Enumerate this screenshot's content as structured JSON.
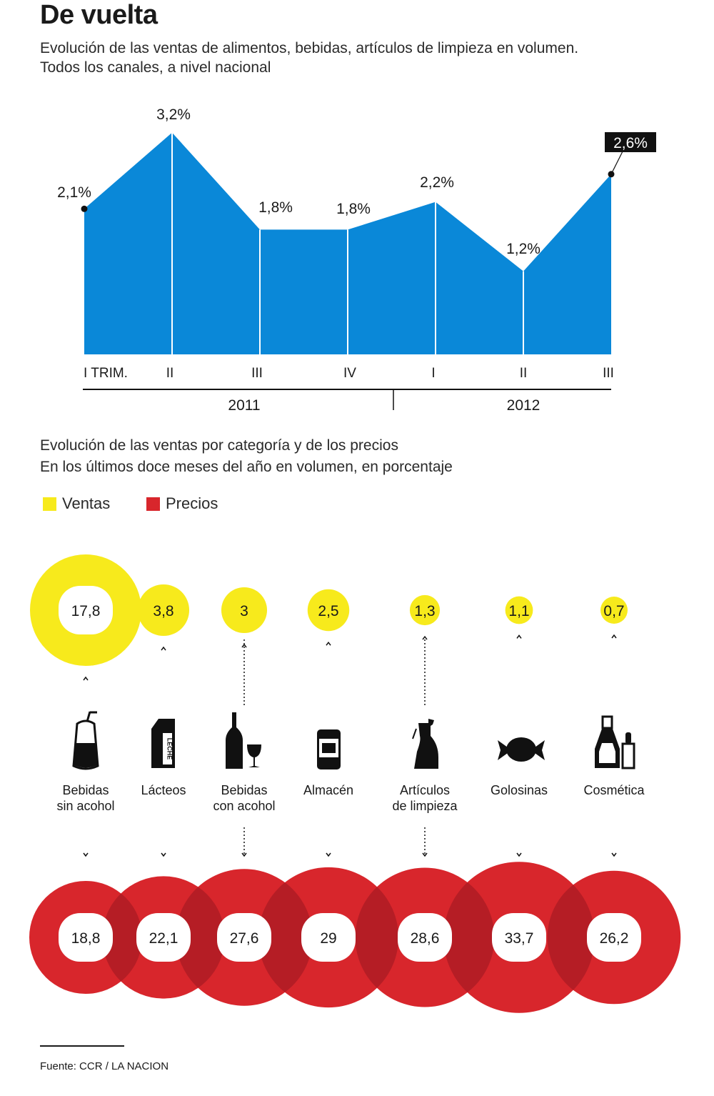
{
  "header": {
    "title": "De vuelta",
    "subtitle_line1": "Evolución de las ventas de alimentos, bebidas, artículos de limpieza en volumen.",
    "subtitle_line2": "Todos los canales, a nivel nacional"
  },
  "section2": {
    "title_line1": "Evolución de las ventas por categoría y de los precios",
    "title_line2": "En los últimos doce meses del año en volumen, en porcentaje"
  },
  "legend": {
    "ventas": "Ventas",
    "precios": "Precios"
  },
  "colors": {
    "area": "#0a88d8",
    "ventas": "#f7ea1c",
    "precios": "#d8262c"
  },
  "source": "Fuente: CCR / LA NACION",
  "chart_data": [
    {
      "type": "area",
      "categories": [
        "I TRIM.",
        "II",
        "III",
        "IV",
        "I",
        "II",
        "III"
      ],
      "values": [
        2.1,
        3.2,
        1.8,
        1.8,
        2.2,
        1.2,
        2.6
      ],
      "value_labels": [
        "2,1%",
        "3,2%",
        "1,8%",
        "1,8%",
        "2,2%",
        "1,2%",
        "2,6%"
      ],
      "year_groups": [
        {
          "label": "2011",
          "categories": 4
        },
        {
          "label": "2012",
          "categories": 3
        }
      ],
      "highlighted_label": "2,6%",
      "grid": false
    },
    {
      "type": "bubble",
      "categories": [
        {
          "icon": "soft-drink-bottle-icon",
          "label_line1": "Bebidas",
          "label_line2": "sin acohol"
        },
        {
          "icon": "milk-carton-icon",
          "label_line1": "Lácteos",
          "label_line2": ""
        },
        {
          "icon": "wine-bottle-glass-icon",
          "label_line1": "Bebidas",
          "label_line2": "con acohol"
        },
        {
          "icon": "food-can-icon",
          "label_line1": "Almacén",
          "label_line2": ""
        },
        {
          "icon": "spray-bottle-icon",
          "label_line1": "Artículos",
          "label_line2": "de limpieza"
        },
        {
          "icon": "wrapped-candy-icon",
          "label_line1": "Golosinas",
          "label_line2": ""
        },
        {
          "icon": "cosmetics-icon",
          "label_line1": "Cosmética",
          "label_line2": ""
        }
      ],
      "icon_text": {
        "milk-carton": "LECHE"
      },
      "series": [
        {
          "name": "Ventas",
          "values": [
            17.8,
            3.8,
            3,
            2.5,
            1.3,
            1.1,
            0.7
          ],
          "labels": [
            "17,8",
            "3,8",
            "3",
            "2,5",
            "1,3",
            "1,1",
            "0,7"
          ]
        },
        {
          "name": "Precios",
          "values": [
            18.8,
            22.1,
            27.6,
            29,
            28.6,
            33.7,
            26.2
          ],
          "labels": [
            "18,8",
            "22,1",
            "27,6",
            "29",
            "28,6",
            "33,7",
            "26,2"
          ]
        }
      ]
    }
  ]
}
